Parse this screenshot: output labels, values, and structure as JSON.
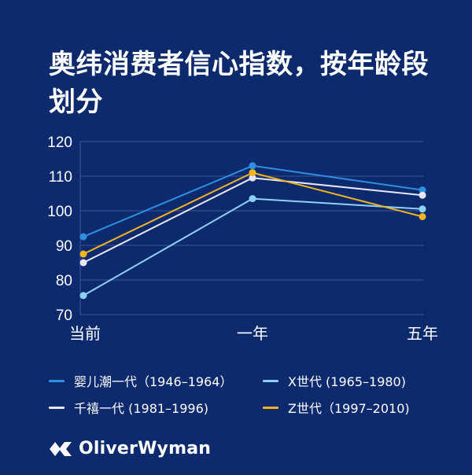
{
  "title": "奥纬消费者信心指数，按年龄段划分",
  "chart_data": {
    "type": "line",
    "title": "奥纬消费者信心指数，按年龄段划分",
    "categories": [
      "当前",
      "一年",
      "五年"
    ],
    "ylim": [
      70,
      120
    ],
    "yticks": [
      120,
      110,
      100,
      90,
      80,
      70
    ],
    "grid": true,
    "legend_position": "bottom",
    "series": [
      {
        "name": "婴儿潮一代（1946–1964）",
        "color": "#2f8fe0",
        "values": [
          92.5,
          113,
          106
        ]
      },
      {
        "name": "X世代 (1965–1980)",
        "color": "#8fd0f5",
        "values": [
          75.5,
          103.5,
          100.5
        ]
      },
      {
        "name": "千禧一代 (1981–1996)",
        "color": "#e8e6f2",
        "values": [
          85,
          109.5,
          104.5
        ]
      },
      {
        "name": "Z世代（1997–2010)",
        "color": "#f2b51f",
        "values": [
          87.5,
          111,
          98.3
        ]
      }
    ]
  },
  "legend_order": [
    0,
    1,
    2,
    3
  ],
  "brand": {
    "name": "OliverWyman"
  }
}
